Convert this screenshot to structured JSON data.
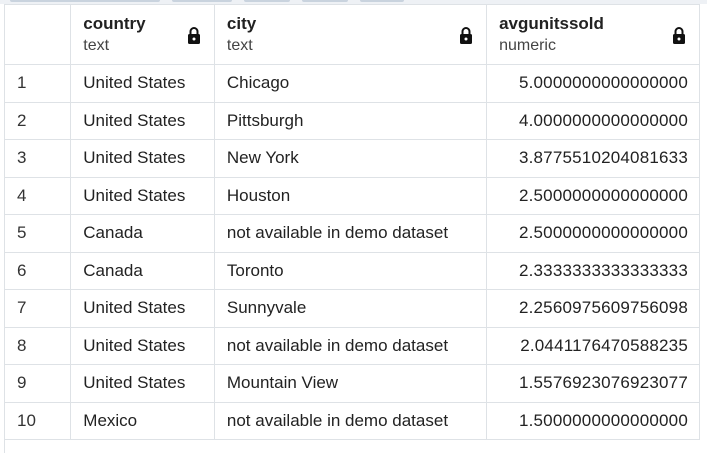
{
  "columns": [
    {
      "name": "country",
      "type": "text"
    },
    {
      "name": "city",
      "type": "text"
    },
    {
      "name": "avgunitssold",
      "type": "numeric"
    }
  ],
  "rows": [
    {
      "index": "1",
      "country": "United States",
      "city": "Chicago",
      "avgunitssold": "5.0000000000000000"
    },
    {
      "index": "2",
      "country": "United States",
      "city": "Pittsburgh",
      "avgunitssold": "4.0000000000000000"
    },
    {
      "index": "3",
      "country": "United States",
      "city": "New York",
      "avgunitssold": "3.8775510204081633"
    },
    {
      "index": "4",
      "country": "United States",
      "city": "Houston",
      "avgunitssold": "2.5000000000000000"
    },
    {
      "index": "5",
      "country": "Canada",
      "city": "not available in demo dataset",
      "avgunitssold": "2.5000000000000000"
    },
    {
      "index": "6",
      "country": "Canada",
      "city": "Toronto",
      "avgunitssold": "2.3333333333333333"
    },
    {
      "index": "7",
      "country": "United States",
      "city": "Sunnyvale",
      "avgunitssold": "2.2560975609756098"
    },
    {
      "index": "8",
      "country": "United States",
      "city": "not available in demo dataset",
      "avgunitssold": "2.0441176470588235"
    },
    {
      "index": "9",
      "country": "United States",
      "city": "Mountain View",
      "avgunitssold": "1.5576923076923077"
    },
    {
      "index": "10",
      "country": "Mexico",
      "city": "not available in demo dataset",
      "avgunitssold": "1.5000000000000000"
    }
  ],
  "icons": {
    "column_lock": "lock-icon"
  }
}
